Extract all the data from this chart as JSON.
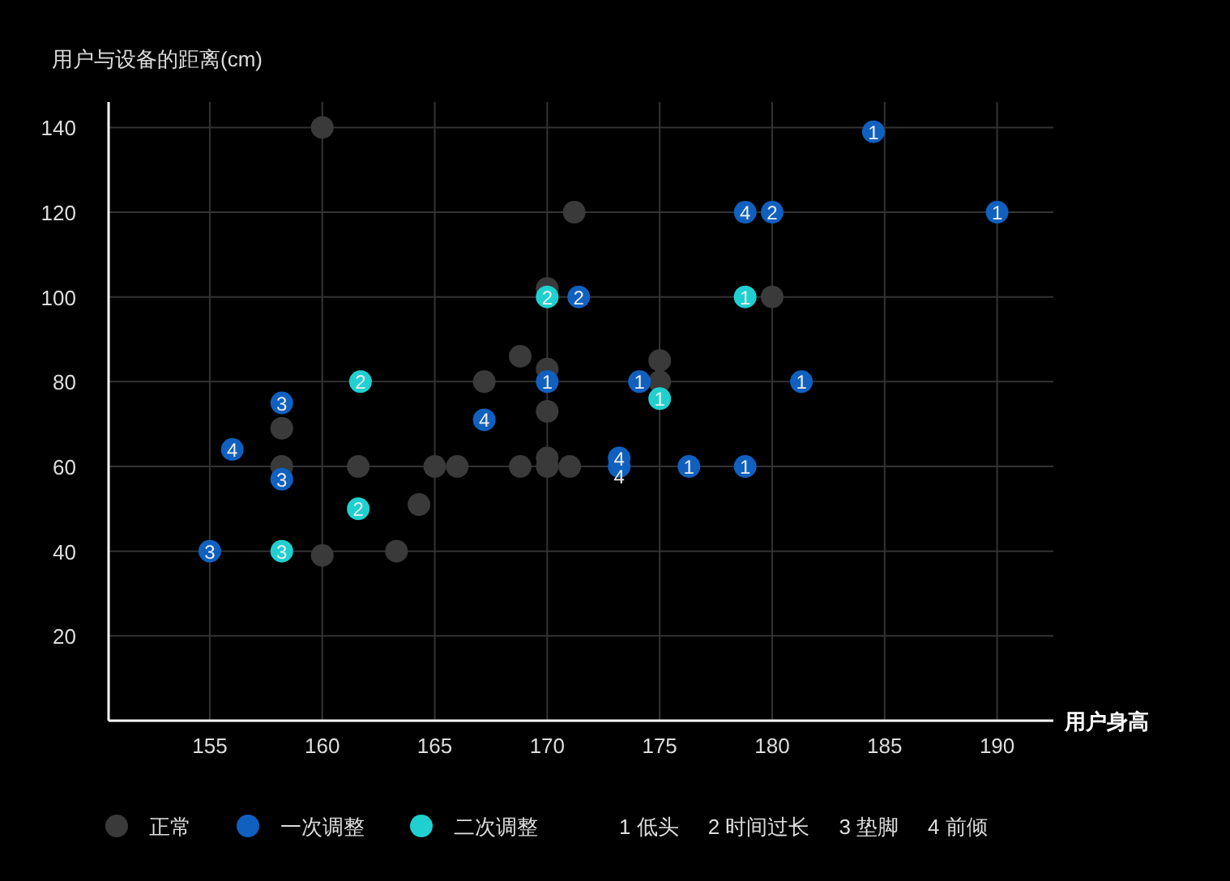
{
  "chart_data": {
    "type": "scatter",
    "ylabel": "用户与设备的距离(cm)",
    "xlabel": "用户身高",
    "xlim": [
      150.5,
      192.5
    ],
    "ylim": [
      0,
      146
    ],
    "xticks": [
      155,
      160,
      165,
      170,
      175,
      180,
      185,
      190
    ],
    "yticks": [
      20,
      40,
      60,
      80,
      100,
      120,
      140
    ],
    "grid": true,
    "legend": "bottom",
    "marker": "circle",
    "series": [
      {
        "name": "正常",
        "color": "#3a3a3a",
        "x": [
          160,
          171.2,
          170,
          168.8,
          167.2,
          170,
          175,
          175,
          180,
          170,
          158.2,
          158.2,
          161.6,
          165,
          166,
          168.8,
          170,
          170,
          171,
          164.3,
          160,
          163.3
        ],
        "values": [
          140,
          120,
          102,
          86,
          80,
          83,
          85,
          80,
          100,
          73,
          69,
          60,
          60,
          60,
          60,
          60,
          62,
          60,
          60,
          51,
          39,
          40
        ]
      },
      {
        "name": "一次调整",
        "color": "#1060c0",
        "x": [
          184.5,
          178.8,
          180,
          190,
          171.4,
          170,
          174.1,
          181.3,
          158.2,
          156,
          158.2,
          167.2,
          173.2,
          173.2,
          176.3,
          178.8,
          155
        ],
        "values": [
          139,
          120,
          120,
          120,
          100,
          80,
          80,
          80,
          75,
          64,
          57,
          71,
          62,
          60,
          60,
          60,
          40
        ]
      },
      {
        "name": "二次调整",
        "color": "#20d0d0",
        "x": [
          170,
          178.8,
          161.7,
          175,
          161.6,
          158.2
        ],
        "values": [
          100,
          100,
          80,
          76,
          50,
          40
        ]
      }
    ],
    "annotations": [
      "1 低头",
      "2 时间过长",
      "3 垫脚",
      "4 前倾",
      {
        "text": "1",
        "x": 184.5,
        "y": 139
      },
      {
        "text": "4",
        "x": 178.8,
        "y": 120
      },
      {
        "text": "2",
        "x": 180,
        "y": 120
      },
      {
        "text": "1",
        "x": 190,
        "y": 120
      },
      {
        "text": "2",
        "x": 171.4,
        "y": 100
      },
      {
        "text": "1",
        "x": 170,
        "y": 80
      },
      {
        "text": "1",
        "x": 174.1,
        "y": 80
      },
      {
        "text": "1",
        "x": 181.3,
        "y": 80
      },
      {
        "text": "3",
        "x": 158.2,
        "y": 75
      },
      {
        "text": "4",
        "x": 156,
        "y": 64
      },
      {
        "text": "3",
        "x": 158.2,
        "y": 57
      },
      {
        "text": "4",
        "x": 167.2,
        "y": 71
      },
      {
        "text": "4",
        "x": 173.2,
        "y": 62
      },
      {
        "text": "4",
        "x": 173.2,
        "y": 60
      },
      {
        "text": "1",
        "x": 176.3,
        "y": 60
      },
      {
        "text": "1",
        "x": 178.8,
        "y": 60
      },
      {
        "text": "3",
        "x": 155,
        "y": 40
      },
      {
        "text": "2",
        "x": 170,
        "y": 100
      },
      {
        "text": "1",
        "x": 178.8,
        "y": 100
      },
      {
        "text": "2",
        "x": 161.7,
        "y": 80
      },
      {
        "text": "1",
        "x": 175,
        "y": 76
      },
      {
        "text": "2",
        "x": 161.6,
        "y": 50
      },
      {
        "text": "3",
        "x": 158.2,
        "y": 40
      }
    ]
  }
}
